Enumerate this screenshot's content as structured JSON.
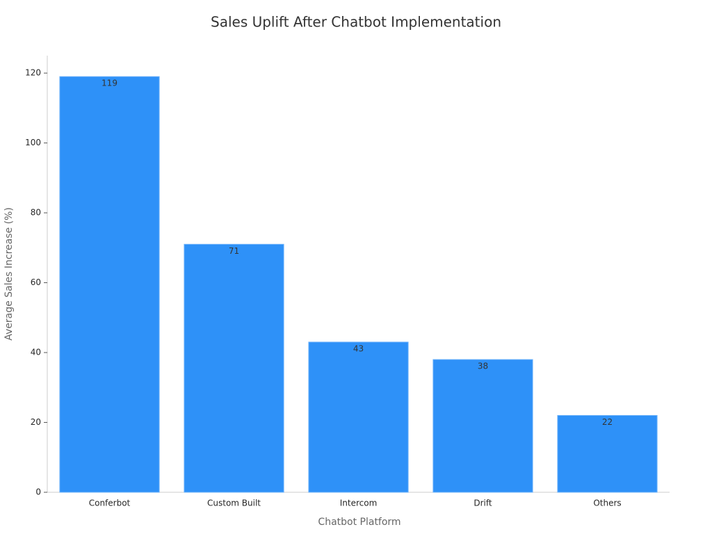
{
  "chart_data": {
    "type": "bar",
    "title": "Sales Uplift After Chatbot Implementation",
    "x_label": "Chatbot Platform",
    "y_label": "Average Sales Increase (%)",
    "categories": [
      "Conferbot",
      "Custom Built",
      "Intercom",
      "Drift",
      "Others"
    ],
    "values": [
      119,
      71,
      43,
      38,
      22
    ],
    "color": "#2e91f8",
    "ylim": [
      0,
      125
    ],
    "yticks": [
      0,
      20,
      40,
      60,
      80,
      100,
      120
    ],
    "grid": false
  }
}
